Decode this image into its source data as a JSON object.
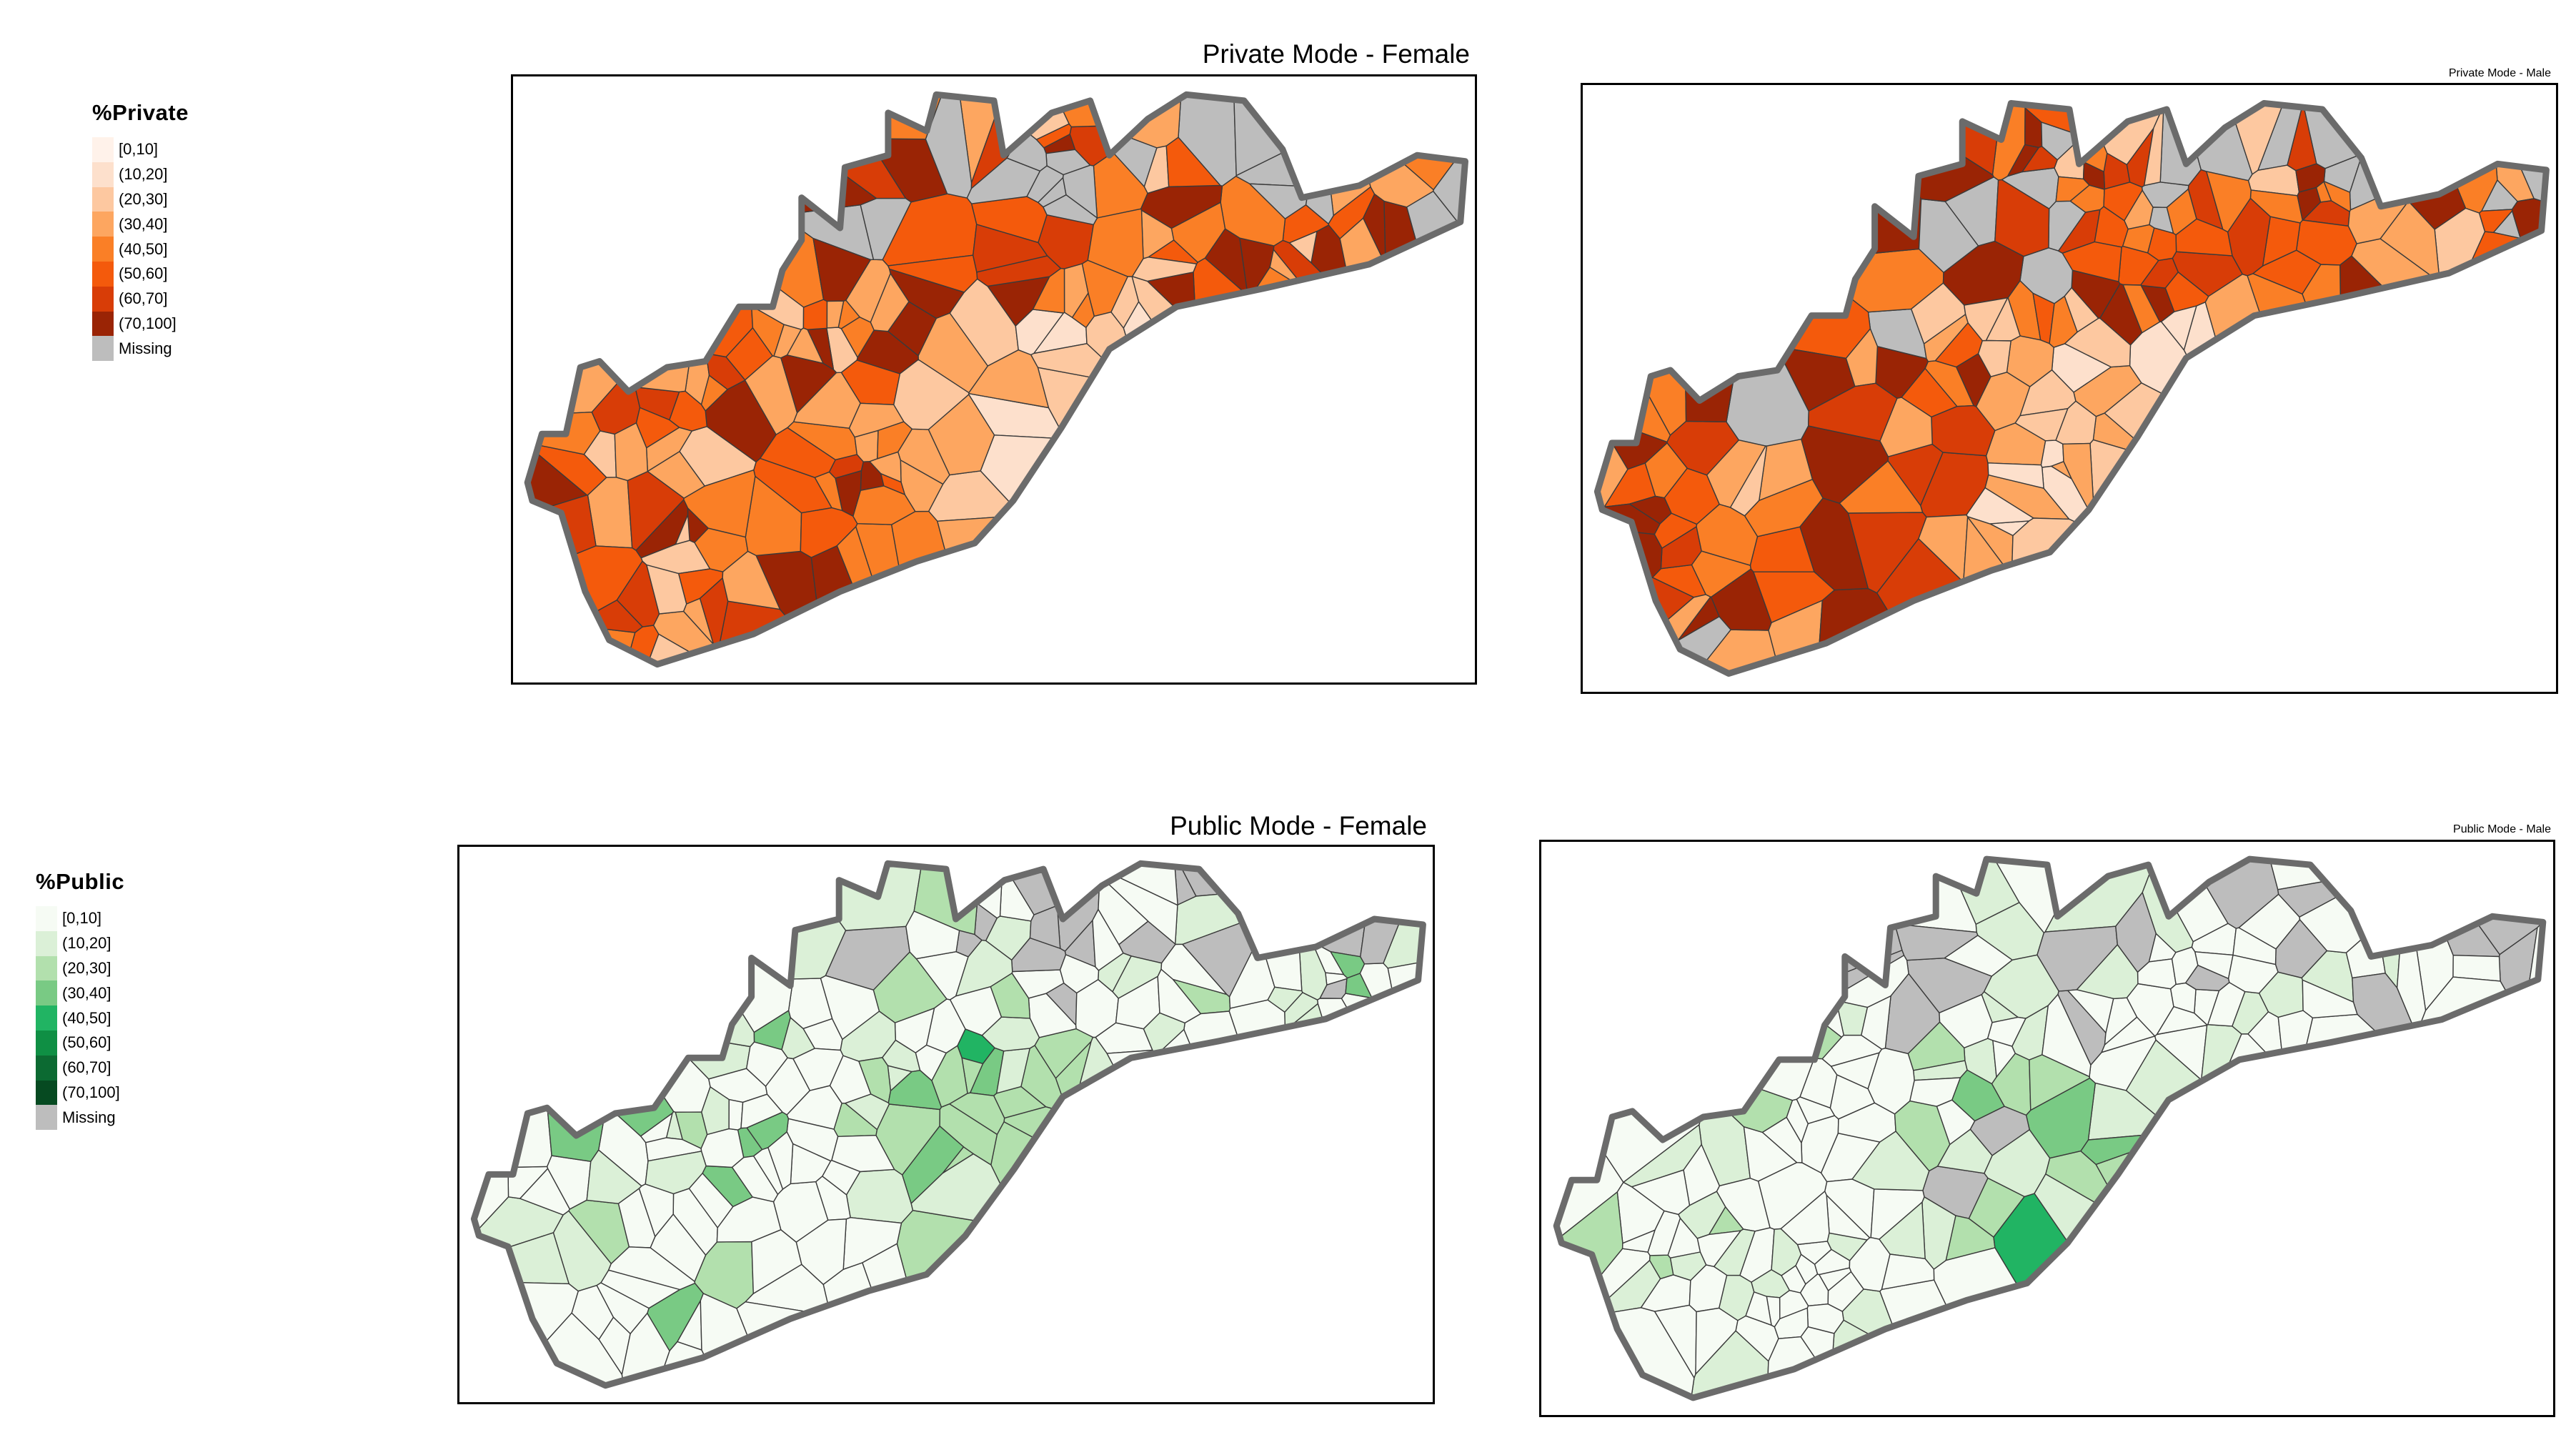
{
  "colors": {
    "border": "#6b6b6b",
    "internal_line": "#3a3a3a",
    "missing": "#bdbdbd"
  },
  "legends": {
    "private": {
      "title": "%Private",
      "items": [
        {
          "label": "[0,10]",
          "color": "#fff2ea"
        },
        {
          "label": "(10,20]",
          "color": "#fde0cc"
        },
        {
          "label": "(20,30]",
          "color": "#fdc8a0"
        },
        {
          "label": "(30,40]",
          "color": "#fda660"
        },
        {
          "label": "(40,50]",
          "color": "#fa7f26"
        },
        {
          "label": "(50,60]",
          "color": "#f45a0c"
        },
        {
          "label": "(60,70]",
          "color": "#d83d07"
        },
        {
          "label": "(70,100]",
          "color": "#9a2405"
        },
        {
          "label": "Missing",
          "color": "#bdbdbd"
        }
      ]
    },
    "public": {
      "title": "%Public",
      "items": [
        {
          "label": "[0,10]",
          "color": "#f6fbf4"
        },
        {
          "label": "(10,20]",
          "color": "#dbf0d7"
        },
        {
          "label": "(20,30]",
          "color": "#b2e0ad"
        },
        {
          "label": "(30,40]",
          "color": "#79ca84"
        },
        {
          "label": "(40,50]",
          "color": "#21b463"
        },
        {
          "label": "(50,60]",
          "color": "#0f8f44"
        },
        {
          "label": "(60,70]",
          "color": "#0c6a32"
        },
        {
          "label": "(70,100]",
          "color": "#064a21"
        },
        {
          "label": "Missing",
          "color": "#bdbdbd"
        }
      ]
    }
  },
  "maps": [
    {
      "title": "Private Mode - Female",
      "scheme": "private",
      "class_mix": [
        [
          2,
          3
        ],
        [
          3,
          6
        ],
        [
          4,
          7
        ],
        [
          5,
          6
        ],
        [
          6,
          4
        ],
        [
          7,
          4
        ]
      ],
      "missing_share": 0.08,
      "coast_bias": "light"
    },
    {
      "title": "Private Mode - Male",
      "scheme": "private",
      "class_mix": [
        [
          2,
          2
        ],
        [
          3,
          5
        ],
        [
          4,
          6
        ],
        [
          5,
          7
        ],
        [
          6,
          5
        ],
        [
          7,
          6
        ]
      ],
      "missing_share": 0.08,
      "coast_bias": "light"
    },
    {
      "title": "Public Mode - Female",
      "scheme": "public",
      "class_mix": [
        [
          0,
          14
        ],
        [
          1,
          5
        ],
        [
          2,
          2
        ],
        [
          3,
          1
        ]
      ],
      "missing_share": 0.08,
      "coast_bias": "dark"
    },
    {
      "title": "Public Mode - Male",
      "scheme": "public",
      "class_mix": [
        [
          0,
          16
        ],
        [
          1,
          5
        ],
        [
          2,
          1
        ]
      ],
      "missing_share": 0.08,
      "coast_bias": "dark"
    }
  ]
}
